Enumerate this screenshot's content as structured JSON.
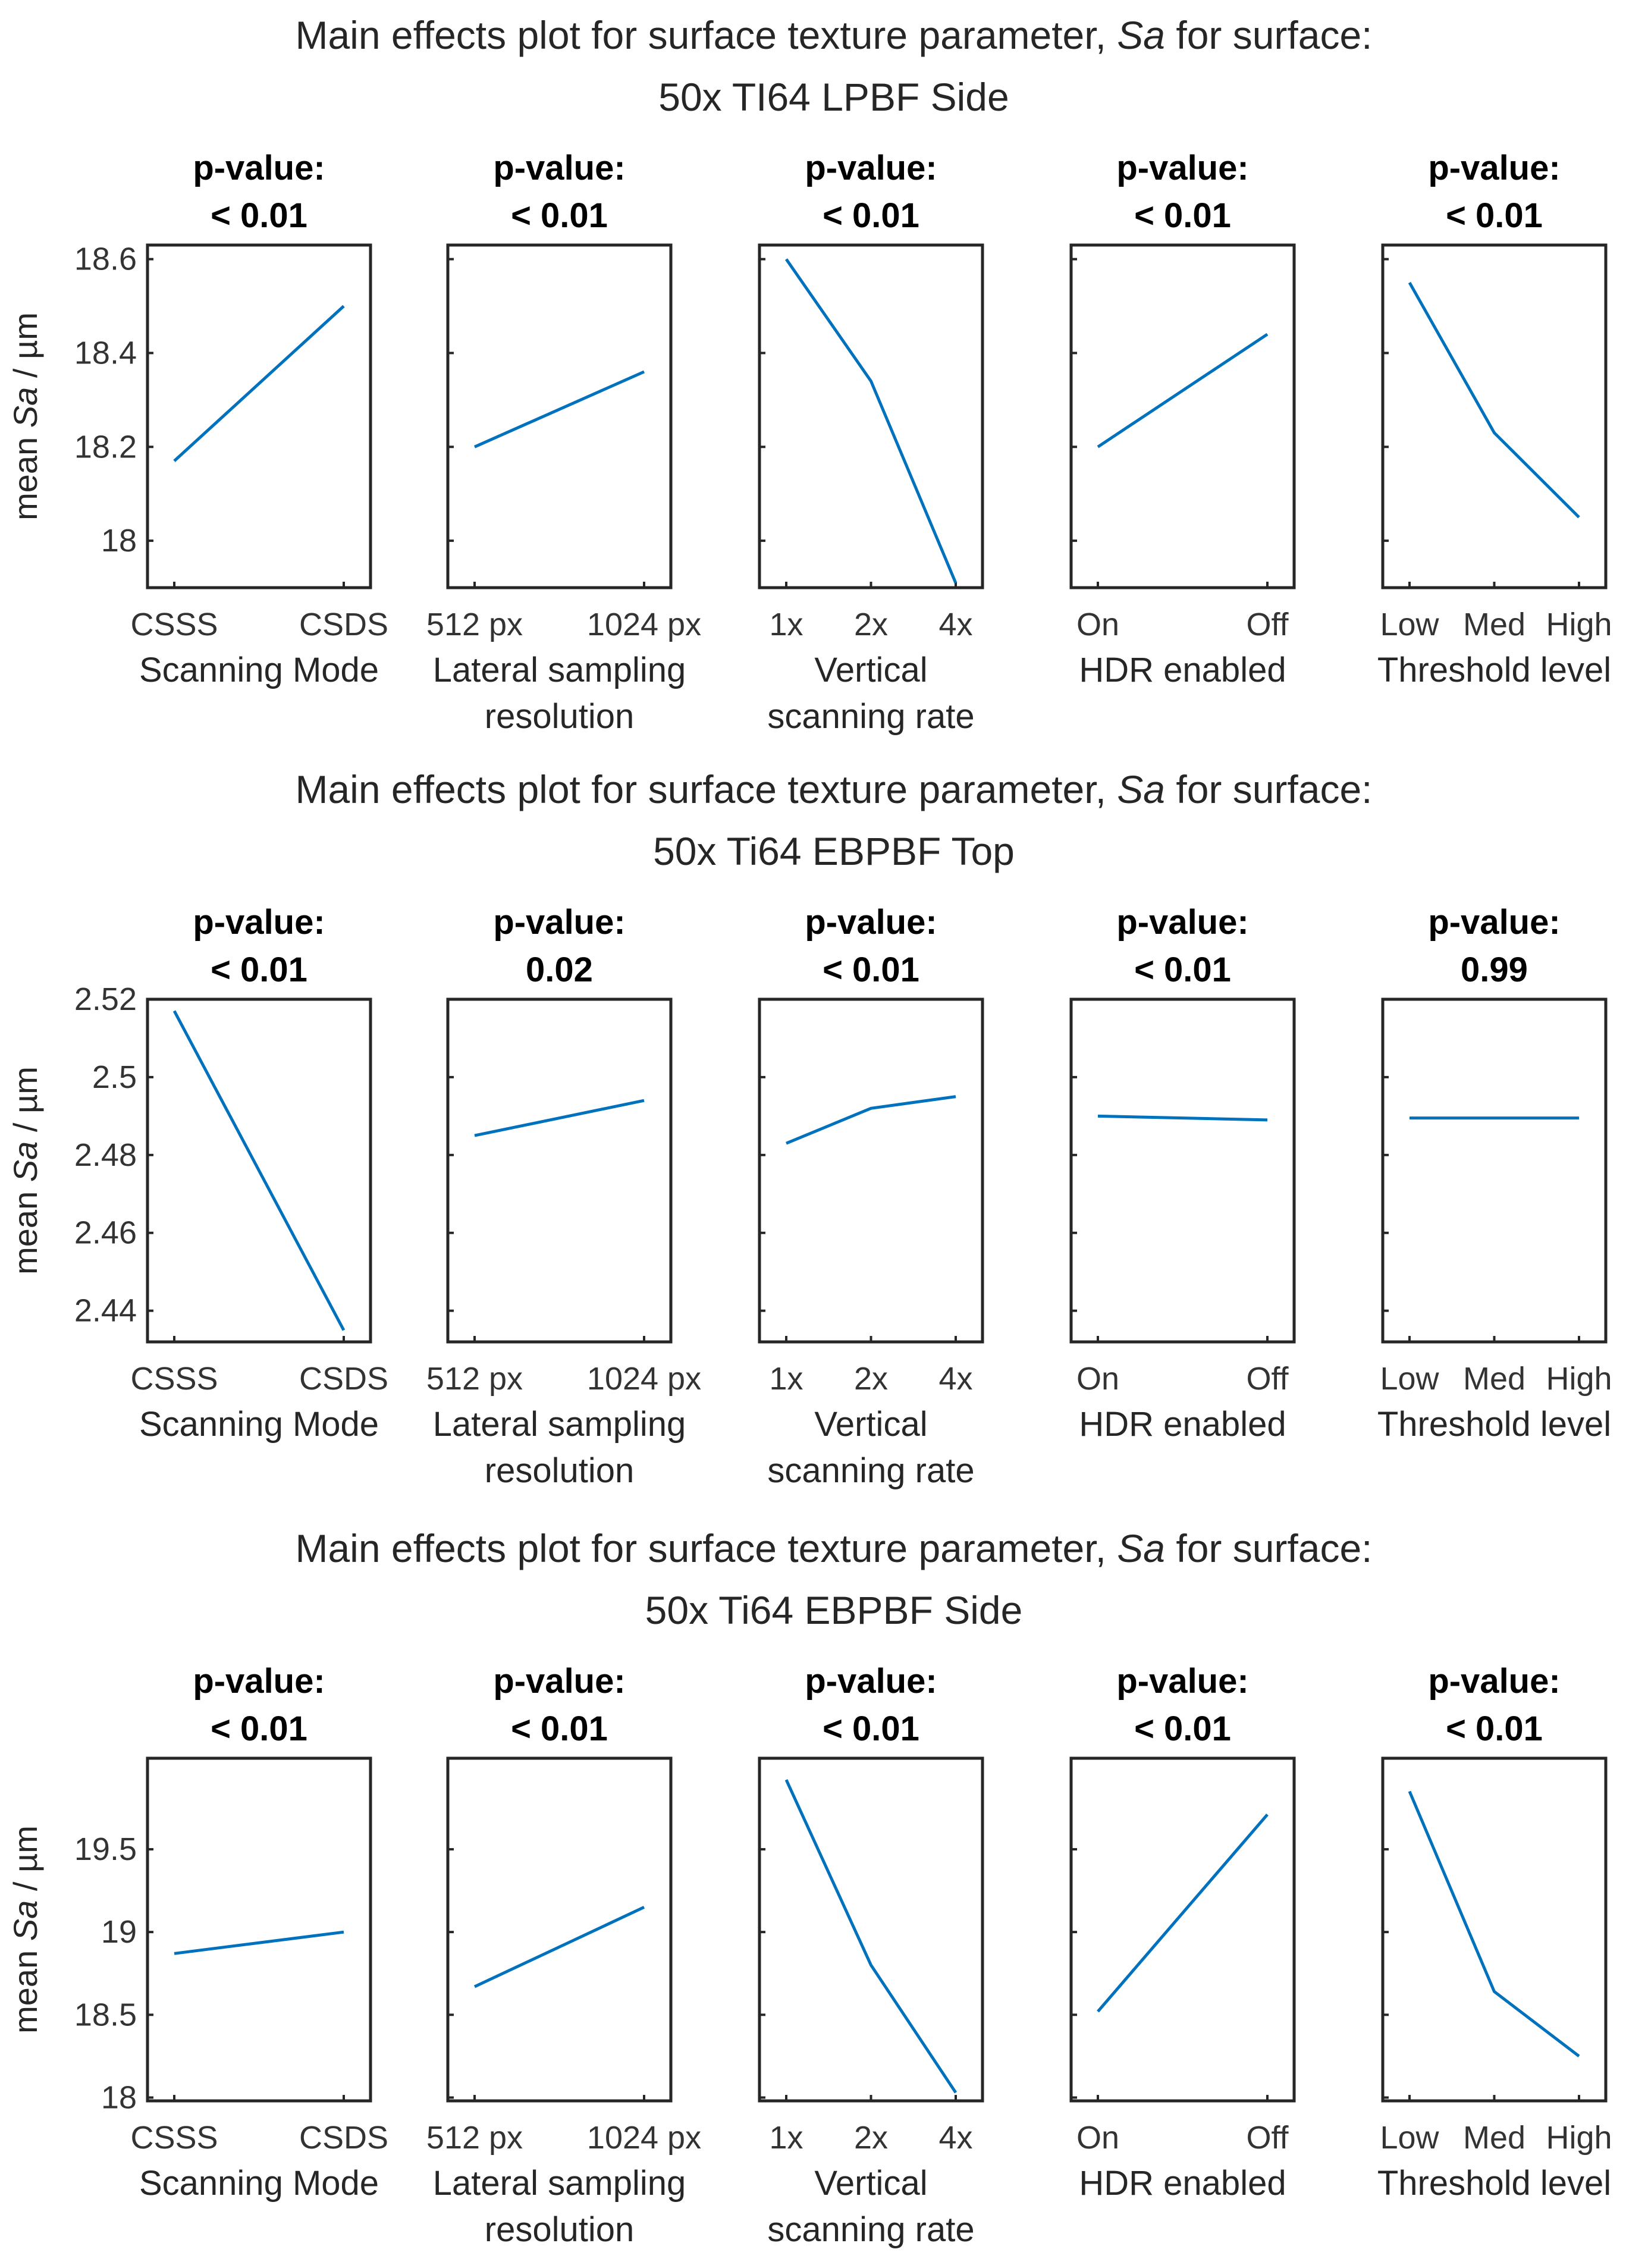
{
  "chart_data": [
    {
      "type": "line",
      "title_prefix": "Main effects plot for surface texture parameter, ",
      "title_param": "Sa",
      "title_suffix": " for surface:",
      "surface": "50x TI64 LPBF Side",
      "ylabel_prefix": "mean ",
      "ylabel_param": "Sa",
      "ylabel_suffix": " / µm",
      "ylim": [
        17.9,
        18.63
      ],
      "yticks": [
        18,
        18.2,
        18.4,
        18.6
      ],
      "ytick_labels": [
        "18",
        "18.2",
        "18.4",
        "18.6"
      ],
      "panels": [
        {
          "pvalue_label": "p-value:",
          "pvalue": "< 0.01",
          "xlabel": [
            "Scanning Mode"
          ],
          "categories": [
            "CSSS",
            "CSDS"
          ],
          "values": [
            18.17,
            18.5
          ]
        },
        {
          "pvalue_label": "p-value:",
          "pvalue": "< 0.01",
          "xlabel": [
            "Lateral sampling",
            "resolution"
          ],
          "categories": [
            "512 px",
            "1024 px"
          ],
          "values": [
            18.2,
            18.36
          ]
        },
        {
          "pvalue_label": "p-value:",
          "pvalue": "< 0.01",
          "xlabel": [
            "Vertical",
            "scanning rate"
          ],
          "categories": [
            "1x",
            "2x",
            "4x"
          ],
          "values": [
            18.6,
            18.34,
            17.91
          ]
        },
        {
          "pvalue_label": "p-value:",
          "pvalue": "< 0.01",
          "xlabel": [
            "HDR enabled"
          ],
          "categories": [
            "On",
            "Off"
          ],
          "values": [
            18.2,
            18.44
          ]
        },
        {
          "pvalue_label": "p-value:",
          "pvalue": "< 0.01",
          "xlabel": [
            "Threshold level"
          ],
          "categories": [
            "Low",
            "Med",
            "High"
          ],
          "values": [
            18.55,
            18.23,
            18.05
          ]
        }
      ]
    },
    {
      "type": "line",
      "title_prefix": "Main effects plot for surface texture parameter, ",
      "title_param": "Sa",
      "title_suffix": " for surface:",
      "surface": "50x Ti64 EBPBF Top",
      "ylabel_prefix": "mean ",
      "ylabel_param": "Sa",
      "ylabel_suffix": " / µm",
      "ylim": [
        2.432,
        2.52
      ],
      "yticks": [
        2.44,
        2.46,
        2.48,
        2.5,
        2.52
      ],
      "ytick_labels": [
        "2.44",
        "2.46",
        "2.48",
        "2.5",
        "2.52"
      ],
      "panels": [
        {
          "pvalue_label": "p-value:",
          "pvalue": "< 0.01",
          "xlabel": [
            "Scanning Mode"
          ],
          "categories": [
            "CSSS",
            "CSDS"
          ],
          "values": [
            2.517,
            2.435
          ]
        },
        {
          "pvalue_label": "p-value:",
          "pvalue": "0.02",
          "xlabel": [
            "Lateral sampling",
            "resolution"
          ],
          "categories": [
            "512 px",
            "1024 px"
          ],
          "values": [
            2.485,
            2.494
          ]
        },
        {
          "pvalue_label": "p-value:",
          "pvalue": "< 0.01",
          "xlabel": [
            "Vertical",
            "scanning rate"
          ],
          "categories": [
            "1x",
            "2x",
            "4x"
          ],
          "values": [
            2.483,
            2.492,
            2.495
          ]
        },
        {
          "pvalue_label": "p-value:",
          "pvalue": "< 0.01",
          "xlabel": [
            "HDR enabled"
          ],
          "categories": [
            "On",
            "Off"
          ],
          "values": [
            2.49,
            2.489
          ]
        },
        {
          "pvalue_label": "p-value:",
          "pvalue": "0.99",
          "xlabel": [
            "Threshold level"
          ],
          "categories": [
            "Low",
            "Med",
            "High"
          ],
          "values": [
            2.4895,
            2.4895,
            2.4895
          ]
        }
      ]
    },
    {
      "type": "line",
      "title_prefix": "Main effects plot for surface texture parameter, ",
      "title_param": "Sa",
      "title_suffix": " for surface:",
      "surface": "50x Ti64 EBPBF Side",
      "ylabel_prefix": "mean ",
      "ylabel_param": "Sa",
      "ylabel_suffix": " / µm",
      "ylim": [
        17.98,
        20.05
      ],
      "yticks": [
        18,
        18.5,
        19,
        19.5
      ],
      "ytick_labels": [
        "18",
        "18.5",
        "19",
        "19.5"
      ],
      "panels": [
        {
          "pvalue_label": "p-value:",
          "pvalue": "< 0.01",
          "xlabel": [
            "Scanning Mode"
          ],
          "categories": [
            "CSSS",
            "CSDS"
          ],
          "values": [
            18.87,
            19.0
          ]
        },
        {
          "pvalue_label": "p-value:",
          "pvalue": "< 0.01",
          "xlabel": [
            "Lateral sampling",
            "resolution"
          ],
          "categories": [
            "512 px",
            "1024 px"
          ],
          "values": [
            18.67,
            19.15
          ]
        },
        {
          "pvalue_label": "p-value:",
          "pvalue": "< 0.01",
          "xlabel": [
            "Vertical",
            "scanning rate"
          ],
          "categories": [
            "1x",
            "2x",
            "4x"
          ],
          "values": [
            19.92,
            18.8,
            18.03
          ]
        },
        {
          "pvalue_label": "p-value:",
          "pvalue": "< 0.01",
          "xlabel": [
            "HDR enabled"
          ],
          "categories": [
            "On",
            "Off"
          ],
          "values": [
            18.52,
            19.71
          ]
        },
        {
          "pvalue_label": "p-value:",
          "pvalue": "< 0.01",
          "xlabel": [
            "Threshold level"
          ],
          "categories": [
            "Low",
            "Med",
            "High"
          ],
          "values": [
            19.85,
            18.64,
            18.25
          ]
        }
      ]
    }
  ],
  "colors": {
    "series": "#0072bd",
    "axes": "#262626",
    "background": "#ffffff"
  }
}
